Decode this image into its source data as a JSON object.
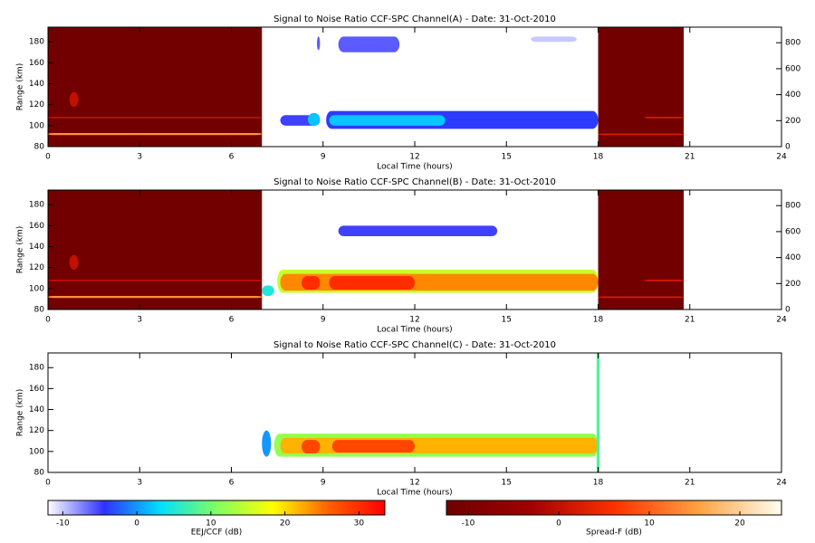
{
  "chart_data": [
    {
      "type": "heatmap",
      "title": "Signal to Noise Ratio CCF-SPC Channel(A) - Date: 31-Oct-2010",
      "xlabel": "Local Time (hours)",
      "ylabel": "Range (km)",
      "xlim": [
        0,
        24
      ],
      "xticks": [
        0,
        3,
        6,
        9,
        12,
        15,
        18,
        21,
        24
      ],
      "ylim": [
        80,
        194
      ],
      "yticks": [
        80,
        100,
        120,
        140,
        160,
        180
      ],
      "y2lim": [
        0,
        920
      ],
      "y2ticks": [
        0,
        200,
        400,
        600,
        800
      ],
      "spread_f_cells": [
        {
          "x": [
            0,
            7
          ],
          "y": [
            80,
            194
          ],
          "value": -12
        },
        {
          "x": [
            18,
            20.8
          ],
          "y": [
            80,
            194
          ],
          "value": -12
        },
        {
          "x": [
            0,
            7
          ],
          "y": [
            91,
            93
          ],
          "value": 14
        },
        {
          "x": [
            0,
            7
          ],
          "y": [
            107,
            108.5
          ],
          "value": 0
        },
        {
          "x": [
            0.7,
            1.0
          ],
          "y": [
            118,
            132
          ],
          "value": 0
        },
        {
          "x": [
            18,
            20.8
          ],
          "y": [
            91,
            92.5
          ],
          "value": 2
        },
        {
          "x": [
            19.5,
            20.8
          ],
          "y": [
            107,
            108.5
          ],
          "value": 2
        }
      ],
      "eej_cells": [
        {
          "x": [
            7.6,
            8.9
          ],
          "y": [
            100,
            110
          ],
          "value": -5
        },
        {
          "x": [
            9.1,
            18
          ],
          "y": [
            97,
            114
          ],
          "value": -4
        },
        {
          "x": [
            9.2,
            13
          ],
          "y": [
            100,
            110
          ],
          "value": 2
        },
        {
          "x": [
            8.5,
            8.9
          ],
          "y": [
            100,
            112
          ],
          "value": 2
        },
        {
          "x": [
            9.5,
            11.5
          ],
          "y": [
            170,
            185
          ],
          "value": -6
        },
        {
          "x": [
            8.8,
            8.9
          ],
          "y": [
            172,
            185
          ],
          "value": -6
        },
        {
          "x": [
            15.8,
            17.3
          ],
          "y": [
            180,
            185
          ],
          "value": -10
        }
      ]
    },
    {
      "type": "heatmap",
      "title": "Signal to Noise Ratio CCF-SPC Channel(B) - Date: 31-Oct-2010",
      "xlabel": "Local Time (hours)",
      "ylabel": "Range (km)",
      "xlim": [
        0,
        24
      ],
      "xticks": [
        0,
        3,
        6,
        9,
        12,
        15,
        18,
        21,
        24
      ],
      "ylim": [
        80,
        194
      ],
      "yticks": [
        80,
        100,
        120,
        140,
        160,
        180
      ],
      "y2lim": [
        0,
        920
      ],
      "y2ticks": [
        0,
        200,
        400,
        600,
        800
      ],
      "spread_f_cells": [
        {
          "x": [
            0,
            7
          ],
          "y": [
            80,
            194
          ],
          "value": -12
        },
        {
          "x": [
            18,
            20.8
          ],
          "y": [
            80,
            194
          ],
          "value": -12
        },
        {
          "x": [
            0,
            7
          ],
          "y": [
            91,
            93
          ],
          "value": 14
        },
        {
          "x": [
            0,
            7
          ],
          "y": [
            107,
            108.5
          ],
          "value": 0
        },
        {
          "x": [
            0.7,
            1.0
          ],
          "y": [
            118,
            132
          ],
          "value": 0
        },
        {
          "x": [
            18,
            20.8
          ],
          "y": [
            91,
            92.5
          ],
          "value": 2
        },
        {
          "x": [
            19.5,
            20.8
          ],
          "y": [
            107,
            108.5
          ],
          "value": 2
        }
      ],
      "eej_cells": [
        {
          "x": [
            7.5,
            18
          ],
          "y": [
            96,
            118
          ],
          "value": 15
        },
        {
          "x": [
            7.6,
            18
          ],
          "y": [
            98,
            114
          ],
          "value": 24
        },
        {
          "x": [
            9.2,
            12
          ],
          "y": [
            99,
            112
          ],
          "value": 30
        },
        {
          "x": [
            8.3,
            8.9
          ],
          "y": [
            99,
            112
          ],
          "value": 30
        },
        {
          "x": [
            7,
            7.4
          ],
          "y": [
            93,
            103
          ],
          "value": 5
        },
        {
          "x": [
            9.5,
            14.7
          ],
          "y": [
            150,
            160
          ],
          "value": -5
        }
      ]
    },
    {
      "type": "heatmap",
      "title": "Signal to Noise Ratio CCF-SPC Channel(C) - Date: 31-Oct-2010",
      "xlabel": "Local Time (hours)",
      "ylabel": "Range (km)",
      "xlim": [
        0,
        24
      ],
      "xticks": [
        0,
        3,
        6,
        9,
        12,
        15,
        18,
        21,
        24
      ],
      "ylim": [
        80,
        194
      ],
      "yticks": [
        80,
        100,
        120,
        140,
        160,
        180
      ],
      "spread_f_cells": [],
      "eej_cells": [
        {
          "x": [
            7.4,
            18
          ],
          "y": [
            95,
            117
          ],
          "value": 12
        },
        {
          "x": [
            7.6,
            18
          ],
          "y": [
            98,
            113
          ],
          "value": 22
        },
        {
          "x": [
            9.3,
            12
          ],
          "y": [
            99,
            111
          ],
          "value": 28
        },
        {
          "x": [
            8.3,
            8.9
          ],
          "y": [
            98,
            111
          ],
          "value": 28
        },
        {
          "x": [
            7,
            7.3
          ],
          "y": [
            95,
            120
          ],
          "value": 0
        },
        {
          "x": [
            17.95,
            18.05
          ],
          "y": [
            80,
            194
          ],
          "value": 8
        }
      ]
    },
    {
      "type": "colorbar",
      "label": "EEJ/CCF (dB)",
      "clim": [
        -12,
        33.5
      ],
      "ticks": [
        -10,
        0,
        10,
        20,
        30
      ],
      "colors": [
        "#ffffff",
        "#3030ff",
        "#00e0ff",
        "#80ff60",
        "#ffff00",
        "#ff6000",
        "#ff0000"
      ]
    },
    {
      "type": "colorbar",
      "label": "Spread-F (dB)",
      "clim": [
        -12.4,
        24.6
      ],
      "ticks": [
        -10,
        0,
        10,
        20
      ],
      "colors": [
        "#700000",
        "#a00000",
        "#ff3000",
        "#ffa040",
        "#fffff0"
      ]
    }
  ]
}
